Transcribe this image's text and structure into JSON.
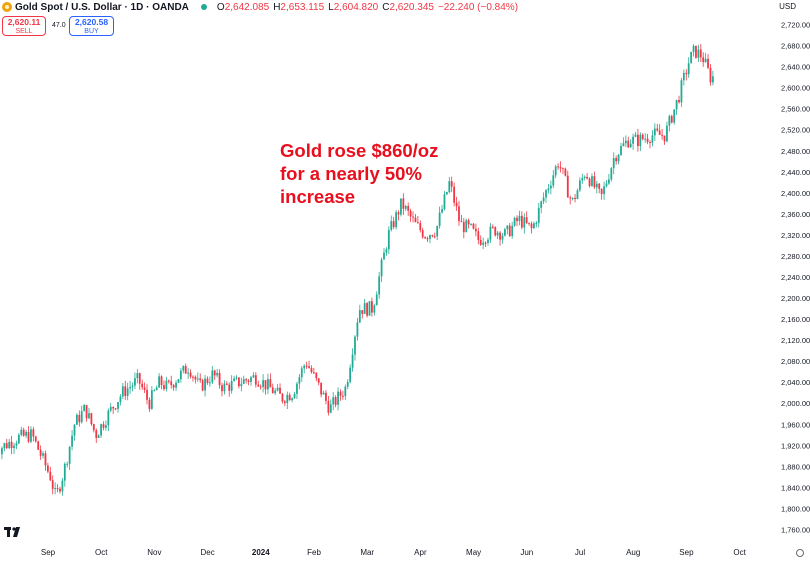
{
  "header": {
    "title": "Gold Spot / U.S. Dollar · 1D · OANDA",
    "open_label": "O",
    "open_value": "2,642.085",
    "high_label": "H",
    "high_value": "2,653.115",
    "low_label": "L",
    "low_value": "2,604.820",
    "close_label": "C",
    "close_value": "2,620.345",
    "change": "−22.240 (−0.84%)",
    "currency": "USD"
  },
  "trade": {
    "sell_price": "2,620.11",
    "sell_label": "SELL",
    "spread": "47.0",
    "buy_price": "2,620.58",
    "buy_label": "BUY"
  },
  "annotation": {
    "line1": "Gold rose $860/oz",
    "line2": "for a nearly 50%",
    "line3": "increase"
  },
  "colors": {
    "up": "#22ab94",
    "down": "#f23645",
    "annotation": "#e8101e",
    "axis_text": "#131722"
  },
  "chart_data": {
    "type": "candlestick",
    "ylim": [
      1740,
      2740
    ],
    "yticks": [
      "1,760.000",
      "1,800.000",
      "1,840.000",
      "1,880.000",
      "1,920.000",
      "1,960.000",
      "2,000.000",
      "2,040.000",
      "2,080.000",
      "2,120.000",
      "2,160.000",
      "2,200.000",
      "2,240.000",
      "2,280.000",
      "2,320.000",
      "2,360.000",
      "2,400.000",
      "2,440.000",
      "2,480.000",
      "2,520.000",
      "2,560.000",
      "2,600.000",
      "2,640.000",
      "2,680.000",
      "2,720.000"
    ],
    "xlabels": [
      "Sep",
      "Oct",
      "Nov",
      "Dec",
      "2024",
      "Feb",
      "Mar",
      "Apr",
      "May",
      "Jun",
      "Jul",
      "Aug",
      "Sep",
      "Oct"
    ],
    "month_index": [
      0,
      1,
      2,
      3,
      4,
      5,
      6,
      7,
      8,
      9,
      10,
      11,
      12,
      13,
      14
    ],
    "month_start_date": [
      "2023-08-23",
      "2023-09-01",
      "2023-10-01",
      "2023-11-01",
      "2023-12-01",
      "2024-01-01",
      "2024-02-01",
      "2024-03-01",
      "2024-04-01",
      "2024-05-01",
      "2024-06-01",
      "2024-07-01",
      "2024-08-01",
      "2024-09-01",
      "2024-10-01"
    ],
    "month_close": [
      1915,
      1900,
      1865,
      1985,
      2035,
      2040,
      2030,
      2045,
      2230,
      2290,
      2330,
      2325,
      2445,
      2500,
      2660,
      2620
    ],
    "waypoints": [
      {
        "month": 0,
        "close": 1915
      },
      {
        "month": 0.35,
        "close": 1935
      },
      {
        "month": 0.6,
        "close": 1940
      },
      {
        "month": 0.95,
        "close": 1860
      },
      {
        "month": 1.05,
        "close": 1820
      },
      {
        "month": 1.2,
        "close": 1870
      },
      {
        "month": 1.4,
        "close": 1960
      },
      {
        "month": 1.6,
        "close": 1990
      },
      {
        "month": 1.8,
        "close": 1940
      },
      {
        "month": 2.1,
        "close": 1990
      },
      {
        "month": 2.3,
        "close": 2020
      },
      {
        "month": 2.6,
        "close": 2045
      },
      {
        "month": 2.8,
        "close": 2000
      },
      {
        "month": 3.0,
        "close": 2040
      },
      {
        "month": 3.15,
        "close": 2030
      },
      {
        "month": 3.35,
        "close": 2050
      },
      {
        "month": 3.55,
        "close": 2070
      },
      {
        "month": 3.75,
        "close": 2030
      },
      {
        "month": 4.0,
        "close": 2055
      },
      {
        "month": 4.2,
        "close": 2030
      },
      {
        "month": 4.5,
        "close": 2040
      },
      {
        "month": 4.8,
        "close": 2050
      },
      {
        "month": 5.0,
        "close": 2035
      },
      {
        "month": 5.3,
        "close": 2010
      },
      {
        "month": 5.5,
        "close": 2020
      },
      {
        "month": 5.75,
        "close": 2080
      },
      {
        "month": 6.0,
        "close": 2030
      },
      {
        "month": 6.2,
        "close": 1990
      },
      {
        "month": 6.5,
        "close": 2030
      },
      {
        "month": 6.75,
        "close": 2180
      },
      {
        "month": 7.0,
        "close": 2180
      },
      {
        "month": 7.3,
        "close": 2320
      },
      {
        "month": 7.55,
        "close": 2380
      },
      {
        "month": 7.8,
        "close": 2340
      },
      {
        "month": 8.0,
        "close": 2320
      },
      {
        "month": 8.2,
        "close": 2330
      },
      {
        "month": 8.45,
        "close": 2420
      },
      {
        "month": 8.65,
        "close": 2340
      },
      {
        "month": 8.85,
        "close": 2330
      },
      {
        "month": 9.0,
        "close": 2310
      },
      {
        "month": 9.3,
        "close": 2330
      },
      {
        "month": 9.5,
        "close": 2320
      },
      {
        "month": 9.75,
        "close": 2350
      },
      {
        "month": 10.0,
        "close": 2330
      },
      {
        "month": 10.25,
        "close": 2400
      },
      {
        "month": 10.5,
        "close": 2460
      },
      {
        "month": 10.75,
        "close": 2380
      },
      {
        "month": 11.0,
        "close": 2440
      },
      {
        "month": 11.3,
        "close": 2390
      },
      {
        "month": 11.55,
        "close": 2470
      },
      {
        "month": 11.8,
        "close": 2500
      },
      {
        "month": 12.0,
        "close": 2500
      },
      {
        "month": 12.25,
        "close": 2510
      },
      {
        "month": 12.5,
        "close": 2510
      },
      {
        "month": 12.75,
        "close": 2580
      },
      {
        "month": 12.95,
        "close": 2650
      },
      {
        "month": 13.05,
        "close": 2670
      },
      {
        "month": 13.2,
        "close": 2660
      },
      {
        "month": 13.35,
        "close": 2620
      }
    ]
  }
}
